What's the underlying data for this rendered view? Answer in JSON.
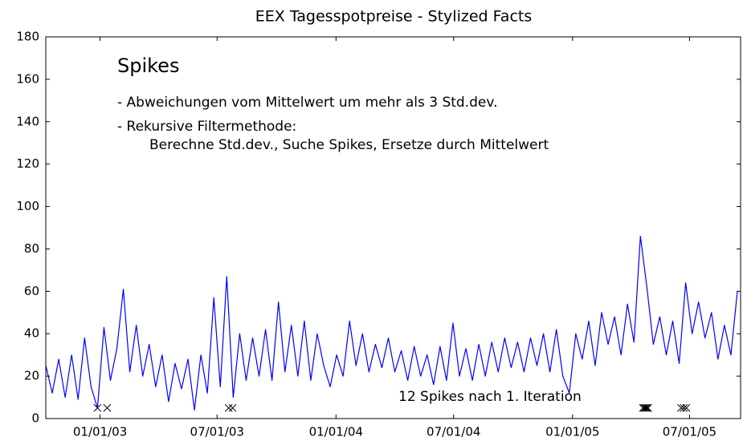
{
  "chart_data": {
    "type": "line",
    "title": "EEX Tagesspotpreise - Stylized Facts",
    "annotations": [
      "Spikes",
      "- Abweichungen vom Mittelwert um mehr als 3 Std.dev.",
      "- Rekursive Filtermethode:",
      "Berechne Std.dev., Suche Spikes, Ersetze durch Mittelwert",
      "12 Spikes nach 1. Iteration"
    ],
    "x": [
      "2002-10-09",
      "2002-10-19",
      "2002-10-29",
      "2002-11-08",
      "2002-11-18",
      "2002-11-28",
      "2002-12-08",
      "2002-12-18",
      "2002-12-28",
      "2003-01-07",
      "2003-01-17",
      "2003-01-27",
      "2003-02-06",
      "2003-02-16",
      "2003-02-26",
      "2003-03-08",
      "2003-03-18",
      "2003-03-28",
      "2003-04-07",
      "2003-04-17",
      "2003-04-27",
      "2003-05-07",
      "2003-05-17",
      "2003-05-27",
      "2003-06-06",
      "2003-06-16",
      "2003-06-26",
      "2003-07-06",
      "2003-07-16",
      "2003-07-26",
      "2003-08-05",
      "2003-08-15",
      "2003-08-25",
      "2003-09-04",
      "2003-09-14",
      "2003-09-24",
      "2003-10-04",
      "2003-10-14",
      "2003-10-24",
      "2003-11-03",
      "2003-11-13",
      "2003-11-23",
      "2003-12-03",
      "2003-12-13",
      "2003-12-23",
      "2004-01-02",
      "2004-01-12",
      "2004-01-22",
      "2004-02-01",
      "2004-02-11",
      "2004-02-21",
      "2004-03-02",
      "2004-03-12",
      "2004-03-22",
      "2004-04-01",
      "2004-04-11",
      "2004-04-21",
      "2004-05-01",
      "2004-05-11",
      "2004-05-21",
      "2004-05-31",
      "2004-06-10",
      "2004-06-20",
      "2004-06-30",
      "2004-07-10",
      "2004-07-20",
      "2004-07-30",
      "2004-08-09",
      "2004-08-19",
      "2004-08-29",
      "2004-09-08",
      "2004-09-18",
      "2004-09-28",
      "2004-10-08",
      "2004-10-18",
      "2004-10-28",
      "2004-11-07",
      "2004-11-17",
      "2004-11-27",
      "2004-12-07",
      "2004-12-17",
      "2004-12-27",
      "2005-01-06",
      "2005-01-16",
      "2005-01-26",
      "2005-02-05",
      "2005-02-15",
      "2005-02-25",
      "2005-03-07",
      "2005-03-17",
      "2005-03-27",
      "2005-04-06",
      "2005-04-16",
      "2005-04-26",
      "2005-05-06",
      "2005-05-16",
      "2005-05-26",
      "2005-06-05",
      "2005-06-15",
      "2005-06-25",
      "2005-07-05",
      "2005-07-15",
      "2005-07-25",
      "2005-08-04",
      "2005-08-14",
      "2005-08-24",
      "2005-09-03",
      "2005-09-13"
    ],
    "series": [
      {
        "color": "#0000ff",
        "values": [
          25,
          12,
          28,
          10,
          30,
          9,
          38,
          15,
          5,
          43,
          18,
          33,
          61,
          22,
          44,
          20,
          35,
          15,
          30,
          8,
          26,
          14,
          28,
          4,
          30,
          12,
          57,
          15,
          67,
          10,
          40,
          18,
          38,
          20,
          42,
          18,
          55,
          22,
          44,
          20,
          46,
          18,
          40,
          25,
          15,
          30,
          20,
          46,
          25,
          40,
          22,
          35,
          24,
          38,
          22,
          32,
          18,
          34,
          20,
          30,
          16,
          34,
          18,
          45,
          20,
          33,
          18,
          35,
          20,
          36,
          22,
          38,
          24,
          36,
          22,
          38,
          25,
          40,
          22,
          42,
          20,
          12,
          40,
          28,
          46,
          25,
          50,
          35,
          48,
          30,
          54,
          36,
          86,
          62,
          35,
          48,
          30,
          46,
          26,
          64,
          40,
          55,
          38,
          50,
          28,
          44,
          30,
          60
        ]
      }
    ],
    "spikes": {
      "color": "#000000",
      "x": [
        "2002-12-28",
        "2003-01-12",
        "2003-07-19",
        "2003-07-25",
        "2005-04-20",
        "2005-04-22",
        "2005-04-24",
        "2005-04-26",
        "2005-04-28",
        "2005-06-18",
        "2005-06-22",
        "2005-06-26"
      ],
      "values": [
        5,
        5,
        5,
        5,
        5,
        5,
        5,
        5,
        5,
        5,
        5,
        5
      ]
    },
    "xlim": [
      "2002-10-09",
      "2005-09-18"
    ],
    "xticks": [
      {
        "value": "2003-01-01",
        "label": "01/01/03"
      },
      {
        "value": "2003-07-01",
        "label": "07/01/03"
      },
      {
        "value": "2004-01-01",
        "label": "01/01/04"
      },
      {
        "value": "2004-07-01",
        "label": "07/01/04"
      },
      {
        "value": "2005-01-01",
        "label": "01/01/05"
      },
      {
        "value": "2005-07-01",
        "label": "07/01/05"
      }
    ],
    "ylim": [
      0,
      180
    ],
    "yticks": [
      0,
      20,
      40,
      60,
      80,
      100,
      120,
      140,
      160,
      180
    ]
  }
}
